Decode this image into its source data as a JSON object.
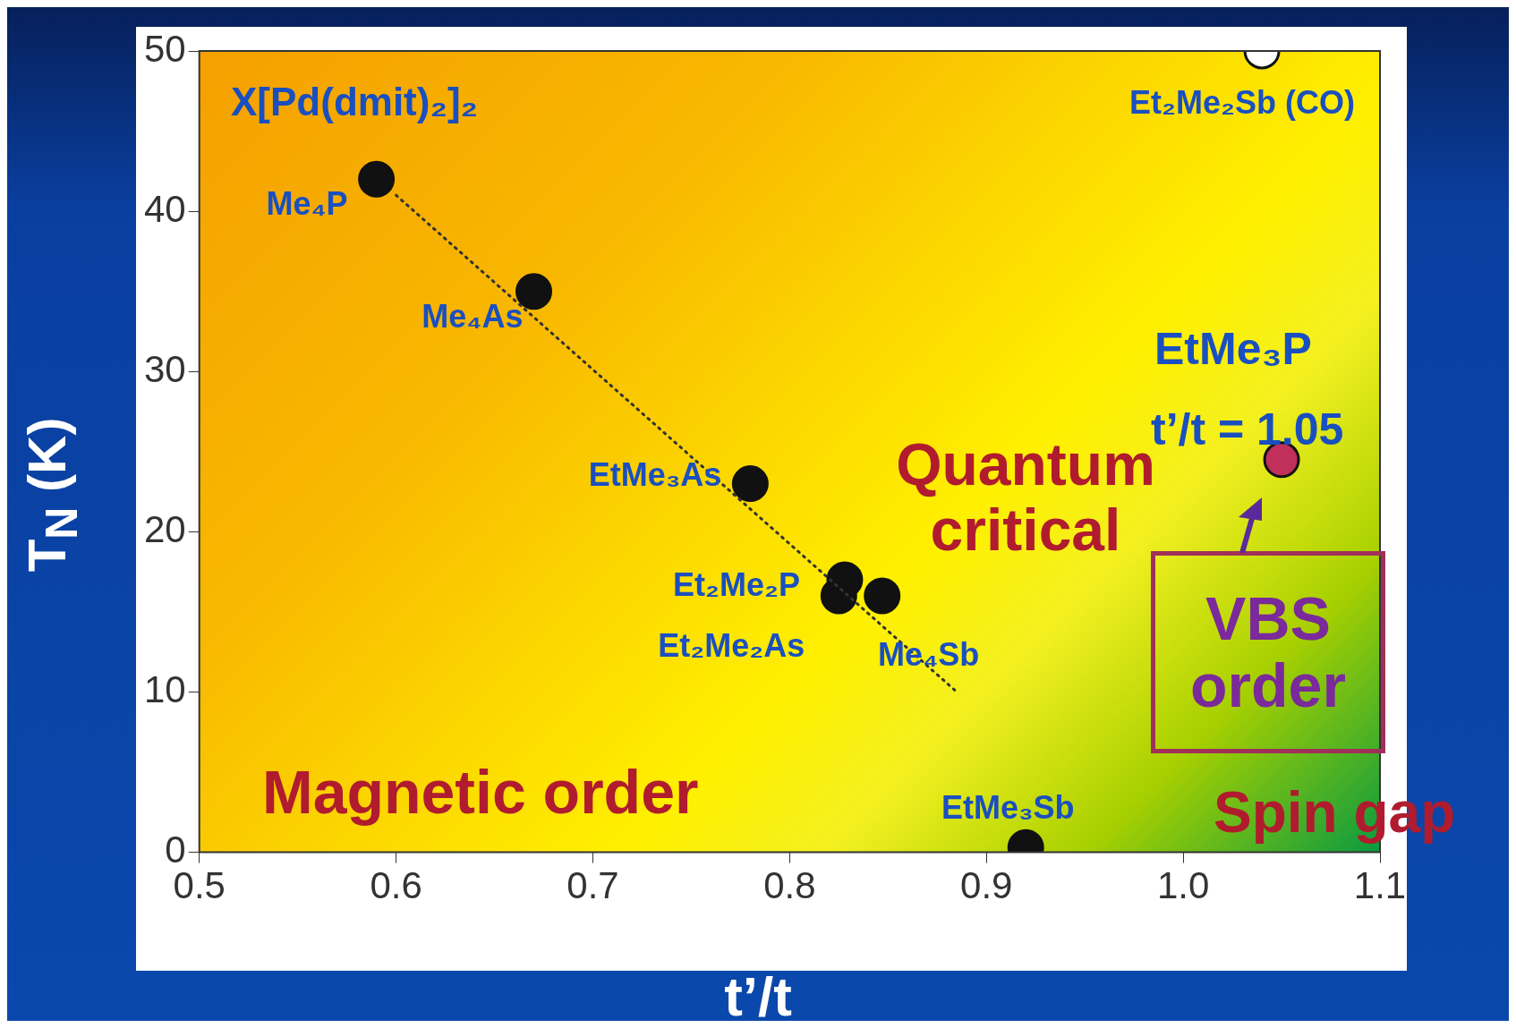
{
  "chart_data": {
    "type": "scatter",
    "xlabel": "t’/t",
    "ylabel": "T$_{N}$ (K)",
    "xlim": [
      0.5,
      1.1
    ],
    "xticks": [
      0.5,
      0.6,
      0.7,
      0.8,
      0.9,
      {
        "value": 1,
        "label": "1.0"
      },
      1.1
    ],
    "ylim": [
      0,
      50
    ],
    "yticks": [
      0,
      10,
      20,
      30,
      40,
      50
    ],
    "grid": false,
    "legend": false,
    "marker": "circle",
    "series": [
      {
        "color": "#111111",
        "x": [
          0.59,
          0.67,
          0.78,
          0.828,
          0.825,
          0.847,
          0.92
        ],
        "values": [
          42,
          35,
          23,
          17,
          16,
          16,
          0.3
        ]
      },
      {
        "color": "#ffffff",
        "x": [
          1.04
        ],
        "values": [
          50
        ]
      },
      {
        "color": "#c0305a",
        "x": [
          1.05
        ],
        "values": [
          24.5
        ]
      },
      {
        "type": "line",
        "line_style": "dotted",
        "marker": "none",
        "color": "#333333",
        "x": [
          0.6,
          0.885
        ],
        "values": [
          41,
          10
        ]
      }
    ],
    "annotations": [
      {
        "text": "Me₄P",
        "x": 0.59,
        "y": 42
      },
      {
        "text": "Me₄As",
        "x": 0.67,
        "y": 35
      },
      {
        "text": "EtMe₃As",
        "x": 0.78,
        "y": 23
      },
      {
        "text": "Et₂Me₂P",
        "x": 0.828,
        "y": 17
      },
      {
        "text": "Et₂Me₂As",
        "x": 0.825,
        "y": 16
      },
      {
        "text": "Me₄Sb",
        "x": 0.847,
        "y": 16
      },
      {
        "text": "EtMe₃Sb",
        "x": 0.92,
        "y": 0.3
      },
      {
        "text": "Et₂Me₂Sb (CO)",
        "x": 1.04,
        "y": 50
      },
      "EtMe₃P",
      "t’/t = 1.05",
      "X[Pd(dmit)₂]₂",
      "Magnetic order",
      "Quantum critical",
      "VBS order",
      "Spin gap"
    ]
  }
}
